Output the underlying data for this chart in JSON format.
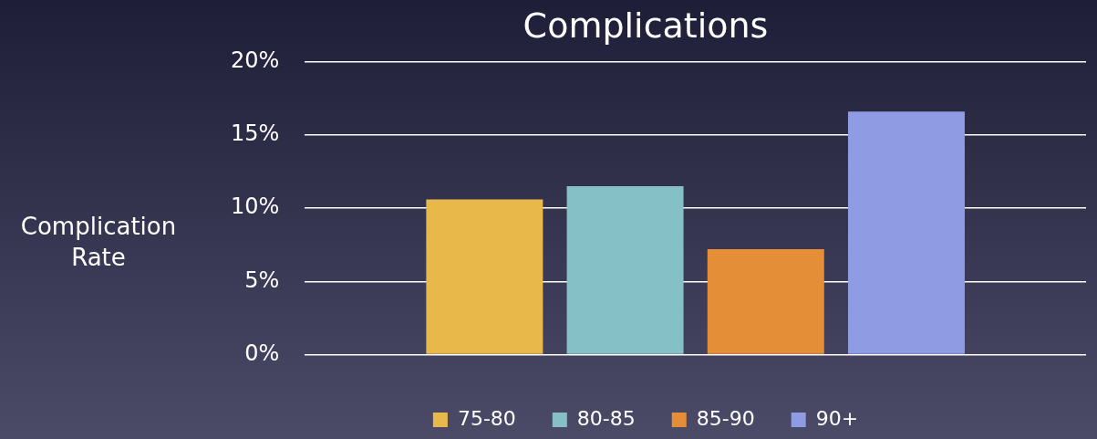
{
  "chart_data": {
    "type": "bar",
    "title": "Complications",
    "ylabel": "Complication Rate",
    "categories": [
      null
    ],
    "series": [
      {
        "name": "75-80",
        "color": "#e8b84a",
        "values": [
          10.6
        ]
      },
      {
        "name": "80-85",
        "color": "#85c0c6",
        "values": [
          11.5
        ]
      },
      {
        "name": "85-90",
        "color": "#e58e38",
        "values": [
          7.2
        ]
      },
      {
        "name": "90+",
        "color": "#8f9be2",
        "values": [
          16.6
        ]
      }
    ],
    "ylim": [
      0,
      20
    ],
    "yticks": [
      {
        "value": 0,
        "label": "0%"
      },
      {
        "value": 5,
        "label": "5%"
      },
      {
        "value": 10,
        "label": "10%"
      },
      {
        "value": 15,
        "label": "15%"
      },
      {
        "value": 20,
        "label": "20%"
      }
    ],
    "grid": "y",
    "legend": "bottom"
  }
}
